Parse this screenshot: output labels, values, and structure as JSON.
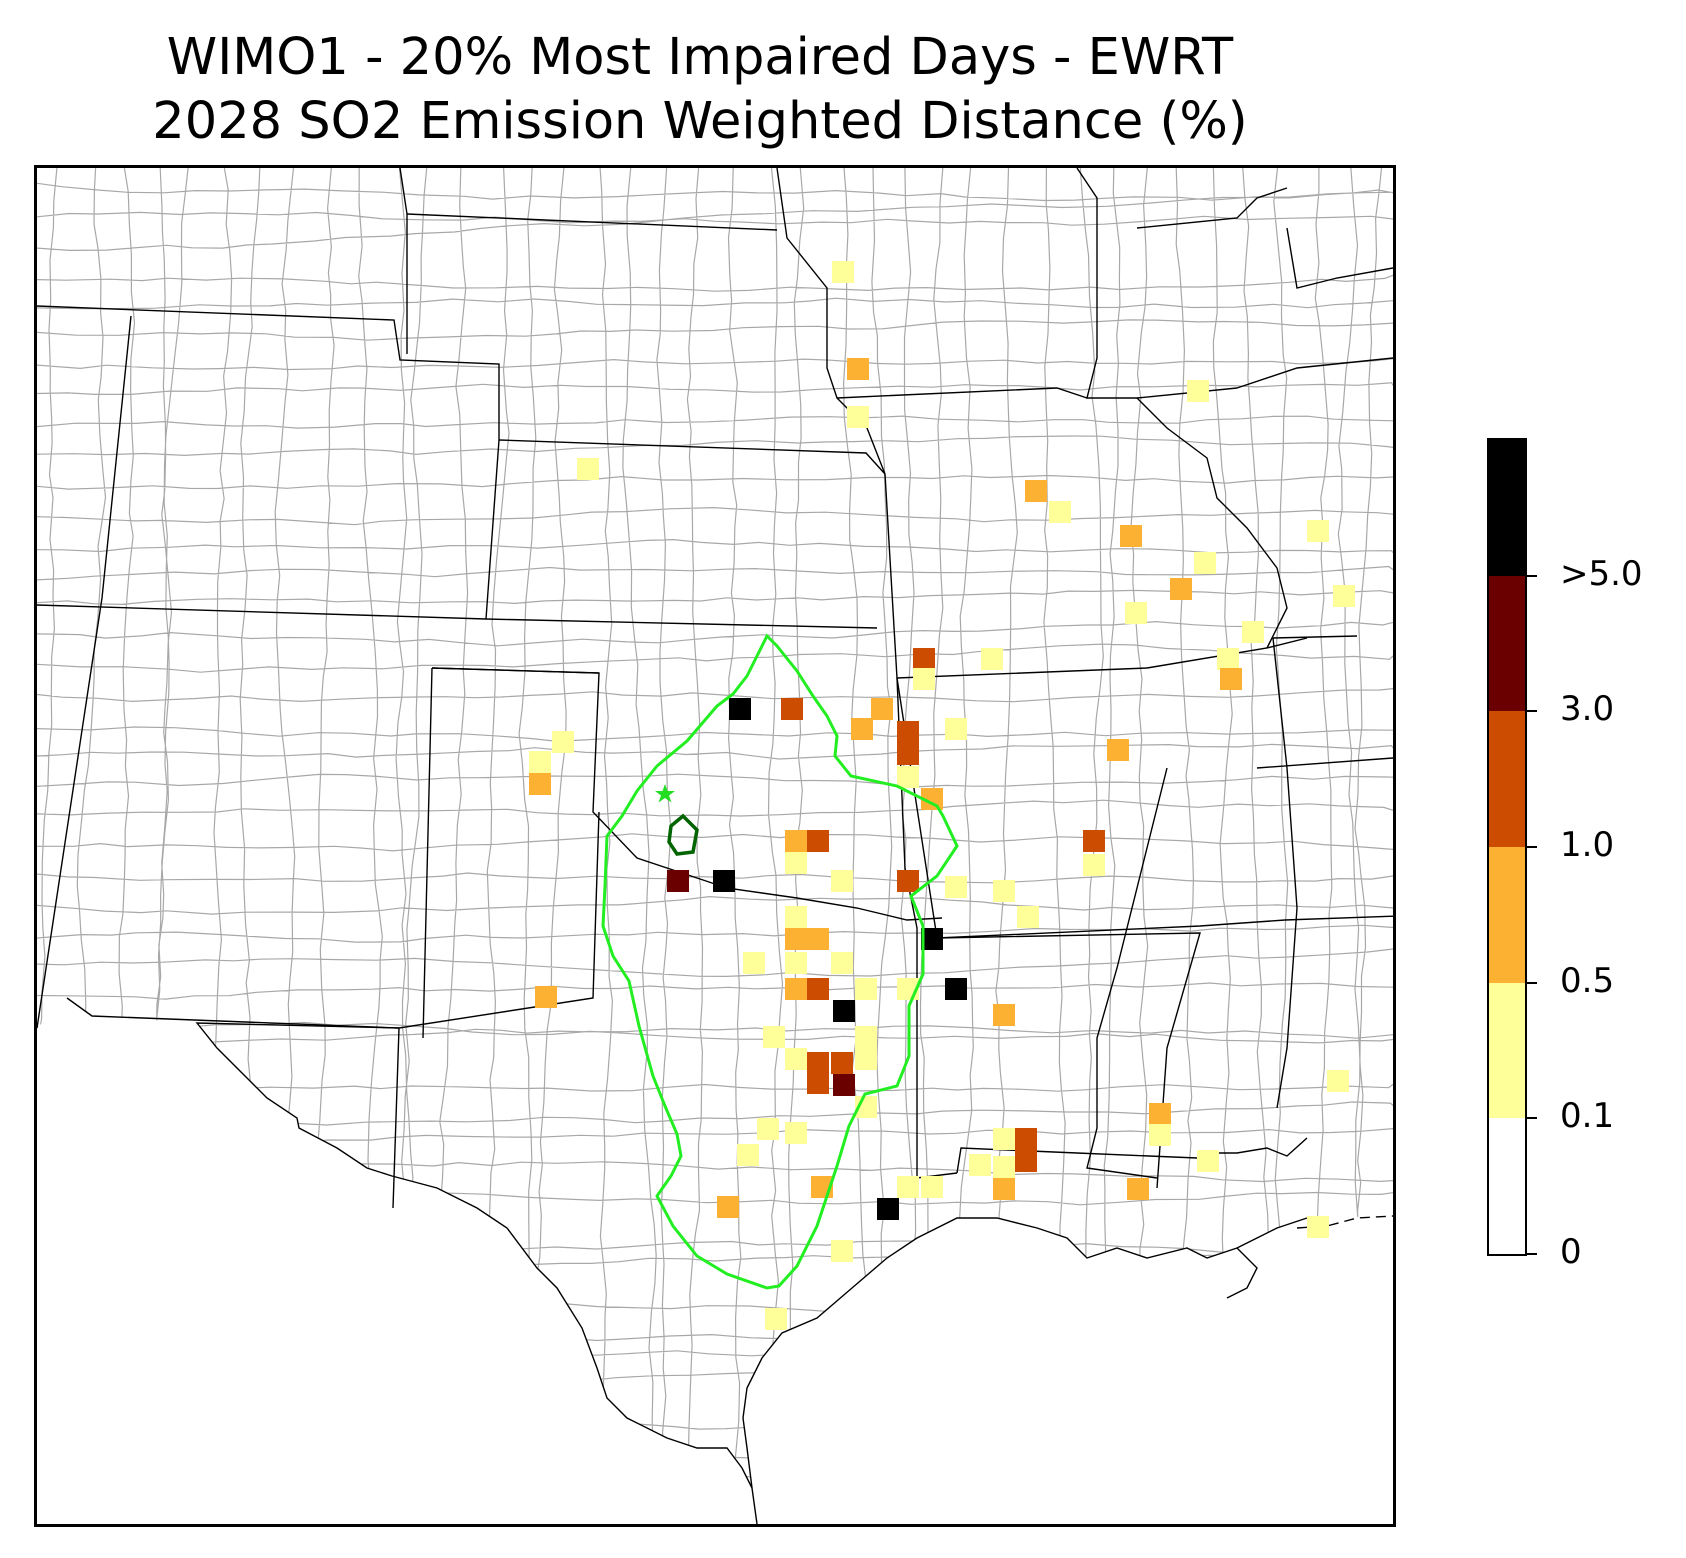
{
  "title": {
    "line1": "WIMO1 - 20% Most Impaired Days - EWRT",
    "line2": "2028 SO2 Emission Weighted Distance (%)"
  },
  "colorbar": {
    "bins": [
      {
        "color": "#ffffff",
        "label": "0"
      },
      {
        "color": "#ffff99",
        "label": "0.1"
      },
      {
        "color": "#fdb133",
        "label": "0.5"
      },
      {
        "color": "#cc4c02",
        "label": "1.0"
      },
      {
        "color": "#6b0000",
        "label": "3.0"
      },
      {
        "color": "#000000",
        "label": ">5.0"
      }
    ],
    "tick_labels": [
      "0",
      "0.1",
      "0.5",
      "1.0",
      "3.0",
      ">5.0"
    ]
  },
  "legend_markers": {
    "site_marker": "star",
    "site_color": "#22dd22",
    "area_of_influence_color": "#22ee22",
    "class1_area_color": "#006400"
  },
  "chart_data": {
    "type": "heatmap",
    "title": "WIMO1 - 20% Most Impaired Days - EWRT",
    "subtitle": "2028 SO2 Emission Weighted Distance (%)",
    "legend": "right",
    "levels": [
      0,
      0.1,
      0.5,
      1.0,
      3.0,
      5.0
    ]
  }
}
